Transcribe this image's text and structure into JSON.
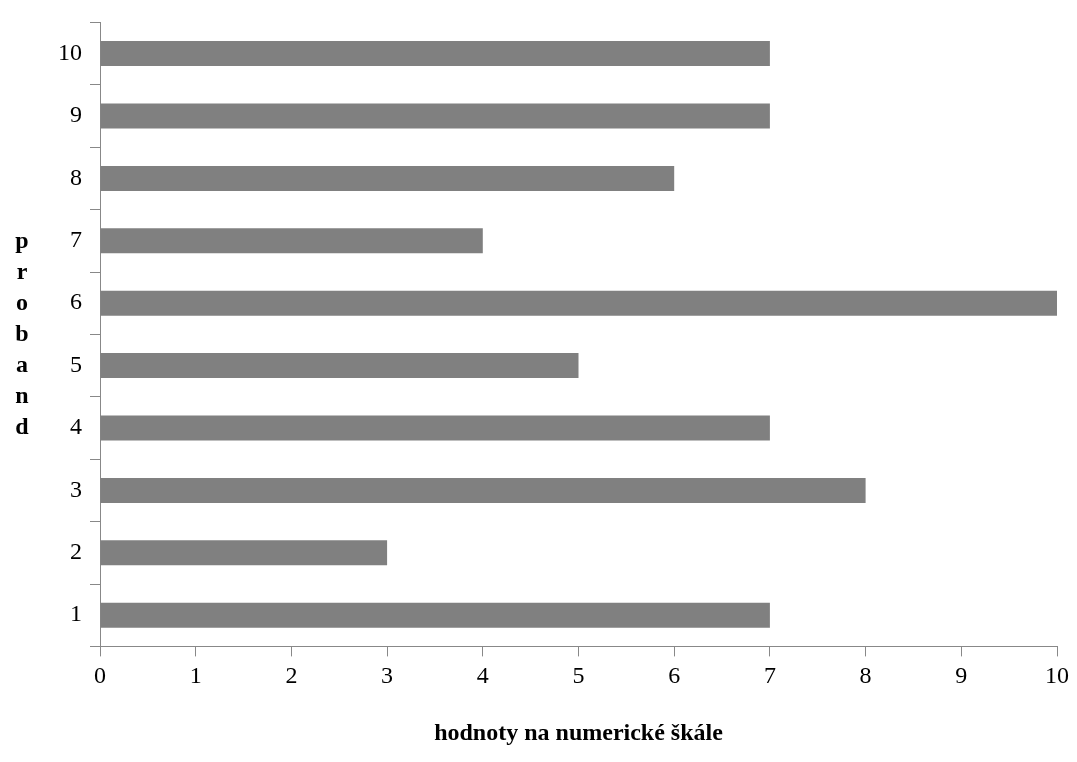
{
  "chart_data": {
    "type": "bar",
    "orientation": "horizontal",
    "xlabel": "hodnoty na numerické škále",
    "ylabel": "proband",
    "categories": [
      "10",
      "9",
      "8",
      "7",
      "6",
      "5",
      "4",
      "3",
      "2",
      "1"
    ],
    "values": [
      7,
      7,
      6,
      4,
      10,
      5,
      7,
      8,
      3,
      7
    ],
    "color": "#808080",
    "xlim": [
      0,
      10
    ],
    "xticks": [
      0,
      1,
      2,
      3,
      4,
      5,
      6,
      7,
      8,
      9,
      10
    ]
  }
}
